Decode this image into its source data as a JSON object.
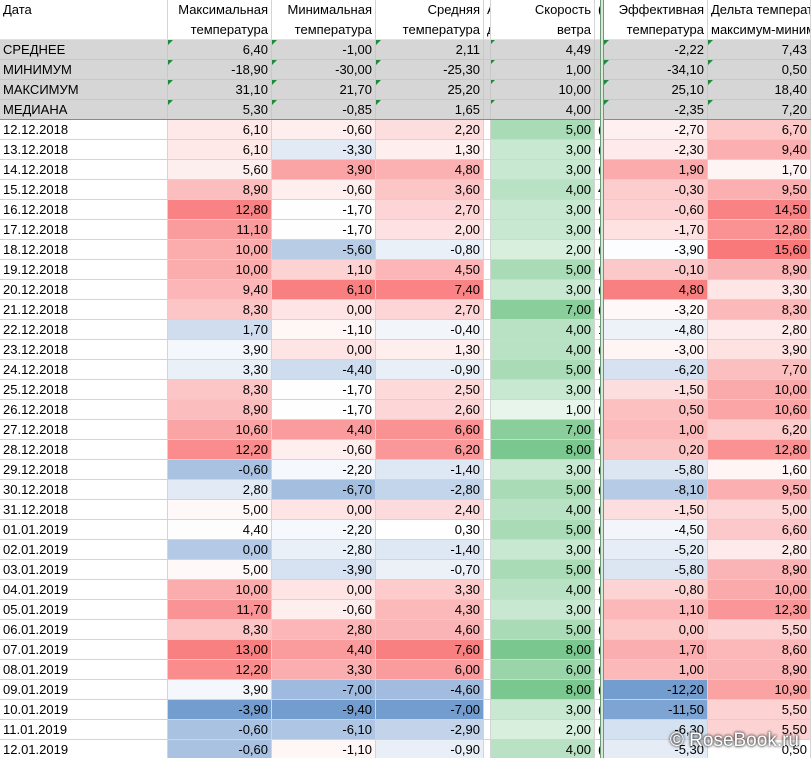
{
  "columns": [
    {
      "h1": "Дата",
      "h2": ""
    },
    {
      "h1": "Максимальная",
      "h2": "температура"
    },
    {
      "h1": "Минимальная",
      "h2": "температура"
    },
    {
      "h1": "Средняя",
      "h2": "температура"
    },
    {
      "h1": "А",
      "h2": "д"
    },
    {
      "h1": "Скорость",
      "h2": "ветра"
    },
    {
      "h1": "(",
      "h2": ""
    },
    {
      "h1": "Эффективная",
      "h2": "температура"
    },
    {
      "h1": "Дельта температур",
      "h2": "максимум-минимум"
    }
  ],
  "stats": [
    {
      "label": "СРЕДНЕЕ",
      "vals": [
        "6,40",
        "-1,00",
        "2,11",
        "4,49",
        "-2,22",
        "7,43"
      ]
    },
    {
      "label": "МИНИМУМ",
      "vals": [
        "-18,90",
        "-30,00",
        "-25,30",
        "1,00",
        "-34,10",
        "0,50"
      ]
    },
    {
      "label": "МАКСИМУМ",
      "vals": [
        "31,10",
        "21,70",
        "25,20",
        "10,00",
        "25,10",
        "18,40"
      ]
    },
    {
      "label": "МЕДИАНА",
      "vals": [
        "5,30",
        "-0,85",
        "1,65",
        "4,00",
        "-2,35",
        "7,20"
      ]
    }
  ],
  "rows": [
    {
      "date": "12.12.2018",
      "max": "6,10",
      "min": "-0,60",
      "avg": "2,20",
      "wind": "5,00",
      "cut": "(",
      "eff": "-2,70",
      "delta": "6,70"
    },
    {
      "date": "13.12.2018",
      "max": "6,10",
      "min": "-3,30",
      "avg": "1,30",
      "wind": "3,00",
      "cut": "(",
      "eff": "-2,30",
      "delta": "9,40"
    },
    {
      "date": "14.12.2018",
      "max": "5,60",
      "min": "3,90",
      "avg": "4,80",
      "wind": "3,00",
      "cut": "(",
      "eff": "1,90",
      "delta": "1,70"
    },
    {
      "date": "15.12.2018",
      "max": "8,90",
      "min": "-0,60",
      "avg": "3,60",
      "wind": "4,00",
      "cut": "4",
      "eff": "-0,30",
      "delta": "9,50"
    },
    {
      "date": "16.12.2018",
      "max": "12,80",
      "min": "-1,70",
      "avg": "2,70",
      "wind": "3,00",
      "cut": "(",
      "eff": "-0,60",
      "delta": "14,50"
    },
    {
      "date": "17.12.2018",
      "max": "11,10",
      "min": "-1,70",
      "avg": "2,00",
      "wind": "3,00",
      "cut": "(",
      "eff": "-1,70",
      "delta": "12,80"
    },
    {
      "date": "18.12.2018",
      "max": "10,00",
      "min": "-5,60",
      "avg": "-0,80",
      "wind": "2,00",
      "cut": "(",
      "eff": "-3,90",
      "delta": "15,60"
    },
    {
      "date": "19.12.2018",
      "max": "10,00",
      "min": "1,10",
      "avg": "4,50",
      "wind": "5,00",
      "cut": "(",
      "eff": "-0,10",
      "delta": "8,90"
    },
    {
      "date": "20.12.2018",
      "max": "9,40",
      "min": "6,10",
      "avg": "7,40",
      "wind": "3,00",
      "cut": "(",
      "eff": "4,80",
      "delta": "3,30"
    },
    {
      "date": "21.12.2018",
      "max": "8,30",
      "min": "0,00",
      "avg": "2,70",
      "wind": "7,00",
      "cut": "(",
      "eff": "-3,20",
      "delta": "8,30"
    },
    {
      "date": "22.12.2018",
      "max": "1,70",
      "min": "-1,10",
      "avg": "-0,40",
      "wind": "4,00",
      "cut": "1",
      "eff": "-4,80",
      "delta": "2,80"
    },
    {
      "date": "23.12.2018",
      "max": "3,90",
      "min": "0,00",
      "avg": "1,30",
      "wind": "4,00",
      "cut": "(",
      "eff": "-3,00",
      "delta": "3,90"
    },
    {
      "date": "24.12.2018",
      "max": "3,30",
      "min": "-4,40",
      "avg": "-0,90",
      "wind": "5,00",
      "cut": "(",
      "eff": "-6,20",
      "delta": "7,70"
    },
    {
      "date": "25.12.2018",
      "max": "8,30",
      "min": "-1,70",
      "avg": "2,50",
      "wind": "3,00",
      "cut": "(",
      "eff": "-1,50",
      "delta": "10,00"
    },
    {
      "date": "26.12.2018",
      "max": "8,90",
      "min": "-1,70",
      "avg": "2,60",
      "wind": "1,00",
      "cut": "(",
      "eff": "0,50",
      "delta": "10,60"
    },
    {
      "date": "27.12.2018",
      "max": "10,60",
      "min": "4,40",
      "avg": "6,60",
      "wind": "7,00",
      "cut": "(",
      "eff": "1,00",
      "delta": "6,20"
    },
    {
      "date": "28.12.2018",
      "max": "12,20",
      "min": "-0,60",
      "avg": "6,20",
      "wind": "8,00",
      "cut": "(",
      "eff": "0,20",
      "delta": "12,80"
    },
    {
      "date": "29.12.2018",
      "max": "-0,60",
      "min": "-2,20",
      "avg": "-1,40",
      "wind": "3,00",
      "cut": "(",
      "eff": "-5,80",
      "delta": "1,60"
    },
    {
      "date": "30.12.2018",
      "max": "2,80",
      "min": "-6,70",
      "avg": "-2,80",
      "wind": "5,00",
      "cut": "(",
      "eff": "-8,10",
      "delta": "9,50"
    },
    {
      "date": "31.12.2018",
      "max": "5,00",
      "min": "0,00",
      "avg": "2,40",
      "wind": "4,00",
      "cut": "(",
      "eff": "-1,50",
      "delta": "5,00"
    },
    {
      "date": "01.01.2019",
      "max": "4,40",
      "min": "-2,20",
      "avg": "0,30",
      "wind": "5,00",
      "cut": "(",
      "eff": "-4,50",
      "delta": "6,60"
    },
    {
      "date": "02.01.2019",
      "max": "0,00",
      "min": "-2,80",
      "avg": "-1,40",
      "wind": "3,00",
      "cut": "(",
      "eff": "-5,20",
      "delta": "2,80"
    },
    {
      "date": "03.01.2019",
      "max": "5,00",
      "min": "-3,90",
      "avg": "-0,70",
      "wind": "5,00",
      "cut": "(",
      "eff": "-5,80",
      "delta": "8,90"
    },
    {
      "date": "04.01.2019",
      "max": "10,00",
      "min": "0,00",
      "avg": "3,30",
      "wind": "4,00",
      "cut": "(",
      "eff": "-0,80",
      "delta": "10,00"
    },
    {
      "date": "05.01.2019",
      "max": "11,70",
      "min": "-0,60",
      "avg": "4,30",
      "wind": "3,00",
      "cut": "(",
      "eff": "1,10",
      "delta": "12,30"
    },
    {
      "date": "06.01.2019",
      "max": "8,30",
      "min": "2,80",
      "avg": "4,60",
      "wind": "5,00",
      "cut": "(",
      "eff": "0,00",
      "delta": "5,50"
    },
    {
      "date": "07.01.2019",
      "max": "13,00",
      "min": "4,40",
      "avg": "7,60",
      "wind": "8,00",
      "cut": "(",
      "eff": "1,70",
      "delta": "8,60"
    },
    {
      "date": "08.01.2019",
      "max": "12,20",
      "min": "3,30",
      "avg": "6,00",
      "wind": "6,00",
      "cut": "(",
      "eff": "1,00",
      "delta": "8,90"
    },
    {
      "date": "09.01.2019",
      "max": "3,90",
      "min": "-7,00",
      "avg": "-4,60",
      "wind": "8,00",
      "cut": "(",
      "eff": "-12,20",
      "delta": "10,90"
    },
    {
      "date": "10.01.2019",
      "max": "-3,90",
      "min": "-9,40",
      "avg": "-7,00",
      "wind": "3,00",
      "cut": "(",
      "eff": "-11,50",
      "delta": "5,50"
    },
    {
      "date": "11.01.2019",
      "max": "-0,60",
      "min": "-6,10",
      "avg": "-2,90",
      "wind": "2,00",
      "cut": "(",
      "eff": "-6,30",
      "delta": "5,50"
    },
    {
      "date": "12.01.2019",
      "max": "-0,60",
      "min": "-1,10",
      "avg": "-0,90",
      "wind": "4,00",
      "cut": "(",
      "eff": "-5,30",
      "delta": "0,50"
    }
  ],
  "colors": {
    "warm": "#f8696b",
    "cool": "#5a8ac6",
    "wind": "#63be7b",
    "stat_bg": "#d6d6d6",
    "marker": "#1f8a3b"
  },
  "watermark": "© RoseBook.ru"
}
